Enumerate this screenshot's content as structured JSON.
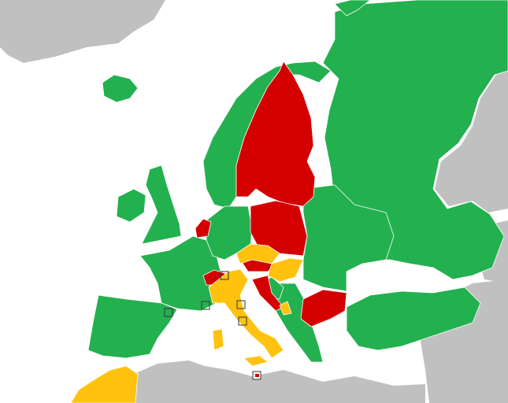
{
  "palette": {
    "sea": "#ffffff",
    "other": "#c0c0c0",
    "green": "#23b04f",
    "red": "#d40000",
    "yellow": "#ffc20e",
    "border": "#ffffff"
  }
}
